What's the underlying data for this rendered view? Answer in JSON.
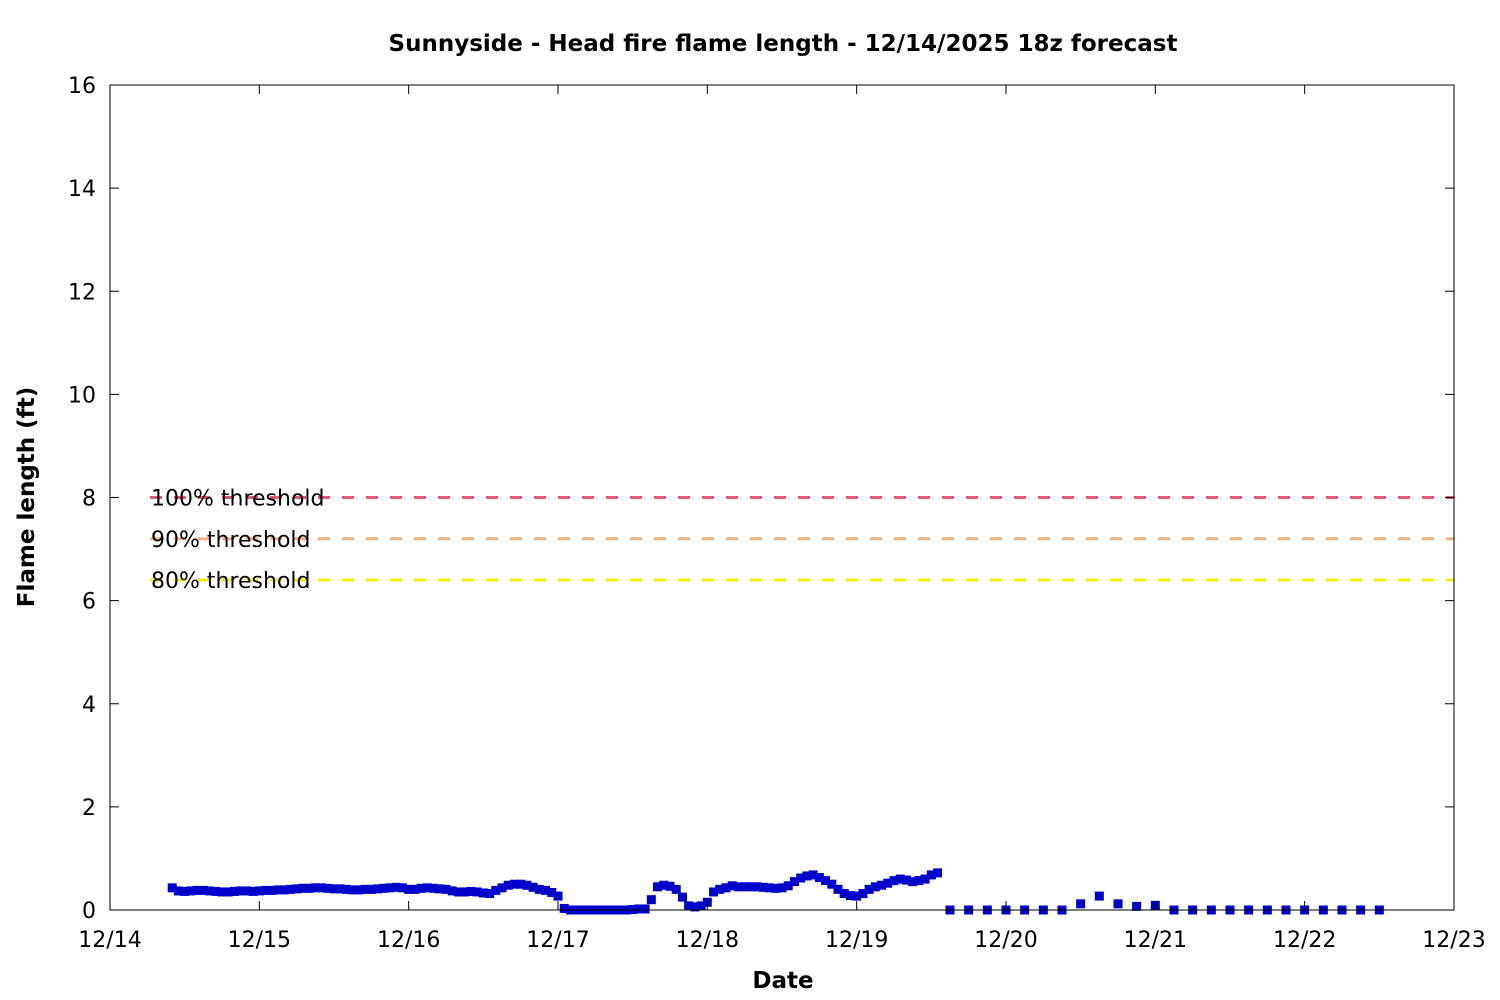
{
  "chart_data": {
    "type": "scatter",
    "title": "Sunnyside - Head fire flame length - 12/14/2025 18z forecast",
    "xlabel": "Date",
    "ylabel": "Flame length (ft)",
    "xlim": [
      "12/14",
      "12/23"
    ],
    "ylim": [
      0,
      16
    ],
    "x_ticks": [
      "12/14",
      "12/15",
      "12/16",
      "12/17",
      "12/18",
      "12/19",
      "12/20",
      "12/21",
      "12/22",
      "12/23"
    ],
    "y_ticks": [
      0,
      2,
      4,
      6,
      8,
      10,
      12,
      14,
      16
    ],
    "grid": false,
    "legend_position": "left",
    "thresholds": [
      {
        "name": "100% threshold",
        "value": 8.0,
        "color": "#e05a74"
      },
      {
        "name": "90% threshold",
        "value": 7.2,
        "color": "#f4b07c"
      },
      {
        "name": "80% threshold",
        "value": 6.4,
        "color": "#f4f000"
      }
    ],
    "series": [
      {
        "color": "#0000cc",
        "marker": "square",
        "points": [
          [
            "12/14 10:00",
            0.43
          ],
          [
            "12/14 11:00",
            0.37
          ],
          [
            "12/14 12:00",
            0.36
          ],
          [
            "12/14 13:00",
            0.37
          ],
          [
            "12/14 14:00",
            0.38
          ],
          [
            "12/14 15:00",
            0.38
          ],
          [
            "12/14 16:00",
            0.37
          ],
          [
            "12/14 17:00",
            0.36
          ],
          [
            "12/14 18:00",
            0.35
          ],
          [
            "12/14 19:00",
            0.35
          ],
          [
            "12/14 20:00",
            0.36
          ],
          [
            "12/14 21:00",
            0.37
          ],
          [
            "12/14 22:00",
            0.37
          ],
          [
            "12/14 23:00",
            0.36
          ],
          [
            "12/15 00:00",
            0.37
          ],
          [
            "12/15 01:00",
            0.38
          ],
          [
            "12/15 02:00",
            0.38
          ],
          [
            "12/15 03:00",
            0.39
          ],
          [
            "12/15 04:00",
            0.39
          ],
          [
            "12/15 05:00",
            0.4
          ],
          [
            "12/15 06:00",
            0.41
          ],
          [
            "12/15 07:00",
            0.42
          ],
          [
            "12/15 08:00",
            0.42
          ],
          [
            "12/15 09:00",
            0.43
          ],
          [
            "12/15 10:00",
            0.43
          ],
          [
            "12/15 11:00",
            0.42
          ],
          [
            "12/15 12:00",
            0.41
          ],
          [
            "12/15 13:00",
            0.41
          ],
          [
            "12/15 14:00",
            0.4
          ],
          [
            "12/15 15:00",
            0.39
          ],
          [
            "12/15 16:00",
            0.39
          ],
          [
            "12/15 17:00",
            0.4
          ],
          [
            "12/15 18:00",
            0.4
          ],
          [
            "12/15 19:00",
            0.41
          ],
          [
            "12/15 20:00",
            0.42
          ],
          [
            "12/15 21:00",
            0.43
          ],
          [
            "12/15 22:00",
            0.44
          ],
          [
            "12/15 23:00",
            0.43
          ],
          [
            "12/16 00:00",
            0.4
          ],
          [
            "12/16 01:00",
            0.4
          ],
          [
            "12/16 02:00",
            0.42
          ],
          [
            "12/16 03:00",
            0.43
          ],
          [
            "12/16 04:00",
            0.42
          ],
          [
            "12/16 05:00",
            0.41
          ],
          [
            "12/16 06:00",
            0.4
          ],
          [
            "12/16 07:00",
            0.37
          ],
          [
            "12/16 08:00",
            0.35
          ],
          [
            "12/16 09:00",
            0.35
          ],
          [
            "12/16 10:00",
            0.36
          ],
          [
            "12/16 11:00",
            0.35
          ],
          [
            "12/16 12:00",
            0.33
          ],
          [
            "12/16 13:00",
            0.32
          ],
          [
            "12/16 14:00",
            0.38
          ],
          [
            "12/16 15:00",
            0.43
          ],
          [
            "12/16 16:00",
            0.48
          ],
          [
            "12/16 17:00",
            0.5
          ],
          [
            "12/16 18:00",
            0.5
          ],
          [
            "12/16 19:00",
            0.48
          ],
          [
            "12/16 20:00",
            0.44
          ],
          [
            "12/16 21:00",
            0.4
          ],
          [
            "12/16 22:00",
            0.38
          ],
          [
            "12/16 23:00",
            0.34
          ],
          [
            "12/17 00:00",
            0.27
          ],
          [
            "12/17 01:00",
            0.03
          ],
          [
            "12/17 02:00",
            0.0
          ],
          [
            "12/17 03:00",
            0.0
          ],
          [
            "12/17 04:00",
            0.0
          ],
          [
            "12/17 05:00",
            0.0
          ],
          [
            "12/17 06:00",
            0.0
          ],
          [
            "12/17 07:00",
            0.0
          ],
          [
            "12/17 08:00",
            0.0
          ],
          [
            "12/17 09:00",
            0.0
          ],
          [
            "12/17 10:00",
            0.0
          ],
          [
            "12/17 11:00",
            0.0
          ],
          [
            "12/17 12:00",
            0.01
          ],
          [
            "12/17 13:00",
            0.02
          ],
          [
            "12/17 14:00",
            0.02
          ],
          [
            "12/17 15:00",
            0.2
          ],
          [
            "12/17 16:00",
            0.45
          ],
          [
            "12/17 17:00",
            0.48
          ],
          [
            "12/17 18:00",
            0.46
          ],
          [
            "12/17 19:00",
            0.4
          ],
          [
            "12/17 20:00",
            0.25
          ],
          [
            "12/17 21:00",
            0.08
          ],
          [
            "12/17 22:00",
            0.06
          ],
          [
            "12/17 23:00",
            0.08
          ],
          [
            "12/18 00:00",
            0.15
          ],
          [
            "12/18 01:00",
            0.35
          ],
          [
            "12/18 02:00",
            0.4
          ],
          [
            "12/18 03:00",
            0.43
          ],
          [
            "12/18 04:00",
            0.47
          ],
          [
            "12/18 05:00",
            0.45
          ],
          [
            "12/18 06:00",
            0.45
          ],
          [
            "12/18 07:00",
            0.45
          ],
          [
            "12/18 08:00",
            0.45
          ],
          [
            "12/18 09:00",
            0.44
          ],
          [
            "12/18 10:00",
            0.43
          ],
          [
            "12/18 11:00",
            0.42
          ],
          [
            "12/18 12:00",
            0.43
          ],
          [
            "12/18 13:00",
            0.47
          ],
          [
            "12/18 14:00",
            0.55
          ],
          [
            "12/18 15:00",
            0.62
          ],
          [
            "12/18 16:00",
            0.66
          ],
          [
            "12/18 17:00",
            0.68
          ],
          [
            "12/18 18:00",
            0.63
          ],
          [
            "12/18 19:00",
            0.57
          ],
          [
            "12/18 20:00",
            0.5
          ],
          [
            "12/18 21:00",
            0.4
          ],
          [
            "12/18 22:00",
            0.32
          ],
          [
            "12/18 23:00",
            0.28
          ],
          [
            "12/19 00:00",
            0.27
          ],
          [
            "12/19 01:00",
            0.32
          ],
          [
            "12/19 02:00",
            0.4
          ],
          [
            "12/19 03:00",
            0.45
          ],
          [
            "12/19 04:00",
            0.48
          ],
          [
            "12/19 05:00",
            0.52
          ],
          [
            "12/19 06:00",
            0.57
          ],
          [
            "12/19 07:00",
            0.6
          ],
          [
            "12/19 08:00",
            0.58
          ],
          [
            "12/19 09:00",
            0.55
          ],
          [
            "12/19 10:00",
            0.57
          ],
          [
            "12/19 11:00",
            0.6
          ],
          [
            "12/19 12:00",
            0.68
          ],
          [
            "12/19 13:00",
            0.72
          ],
          [
            "12/19 15:00",
            0.0
          ],
          [
            "12/19 18:00",
            0.0
          ],
          [
            "12/19 21:00",
            0.0
          ],
          [
            "12/20 00:00",
            0.0
          ],
          [
            "12/20 03:00",
            0.0
          ],
          [
            "12/20 06:00",
            0.0
          ],
          [
            "12/20 09:00",
            0.0
          ],
          [
            "12/20 12:00",
            0.12
          ],
          [
            "12/20 15:00",
            0.27
          ],
          [
            "12/20 18:00",
            0.12
          ],
          [
            "12/20 21:00",
            0.07
          ],
          [
            "12/21 00:00",
            0.09
          ],
          [
            "12/21 03:00",
            0.0
          ],
          [
            "12/21 06:00",
            0.0
          ],
          [
            "12/21 09:00",
            0.0
          ],
          [
            "12/21 12:00",
            0.0
          ],
          [
            "12/21 15:00",
            0.0
          ],
          [
            "12/21 18:00",
            0.0
          ],
          [
            "12/21 21:00",
            0.0
          ],
          [
            "12/22 00:00",
            0.0
          ],
          [
            "12/22 03:00",
            0.0
          ],
          [
            "12/22 06:00",
            0.0
          ],
          [
            "12/22 09:00",
            0.0
          ],
          [
            "12/22 12:00",
            0.0
          ]
        ]
      }
    ]
  }
}
